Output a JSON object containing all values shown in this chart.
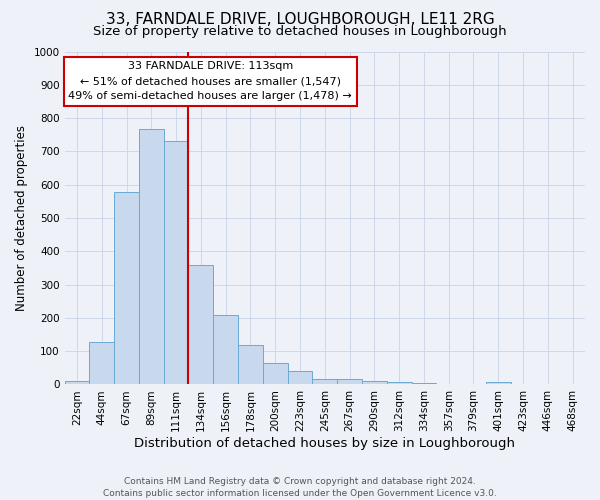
{
  "title": "33, FARNDALE DRIVE, LOUGHBOROUGH, LE11 2RG",
  "subtitle": "Size of property relative to detached houses in Loughborough",
  "xlabel": "Distribution of detached houses by size in Loughborough",
  "ylabel": "Number of detached properties",
  "bar_labels": [
    "22sqm",
    "44sqm",
    "67sqm",
    "89sqm",
    "111sqm",
    "134sqm",
    "156sqm",
    "178sqm",
    "200sqm",
    "223sqm",
    "245sqm",
    "267sqm",
    "290sqm",
    "312sqm",
    "334sqm",
    "357sqm",
    "379sqm",
    "401sqm",
    "423sqm",
    "446sqm",
    "468sqm"
  ],
  "bar_values": [
    10,
    128,
    578,
    768,
    730,
    358,
    210,
    120,
    63,
    40,
    17,
    15,
    10,
    7,
    5,
    0,
    0,
    8,
    0,
    0,
    0
  ],
  "bar_color": "#c8d9ee",
  "bar_edge_color": "#6aaad4",
  "vline_x_index": 4,
  "vline_color": "#cc0000",
  "ylim": [
    0,
    1000
  ],
  "yticks": [
    0,
    100,
    200,
    300,
    400,
    500,
    600,
    700,
    800,
    900,
    1000
  ],
  "annotation_title": "33 FARNDALE DRIVE: 113sqm",
  "annotation_line1": "← 51% of detached houses are smaller (1,547)",
  "annotation_line2": "49% of semi-detached houses are larger (1,478) →",
  "annotation_box_color": "#ffffff",
  "annotation_box_edge": "#cc0000",
  "footer1": "Contains HM Land Registry data © Crown copyright and database right 2024.",
  "footer2": "Contains public sector information licensed under the Open Government Licence v3.0.",
  "background_color": "#eef2f8",
  "grid_color": "#c8d4e8",
  "title_fontsize": 11,
  "subtitle_fontsize": 9.5,
  "xlabel_fontsize": 9.5,
  "ylabel_fontsize": 8.5,
  "tick_fontsize": 7.5,
  "footer_fontsize": 6.5,
  "ann_fontsize": 8.0
}
